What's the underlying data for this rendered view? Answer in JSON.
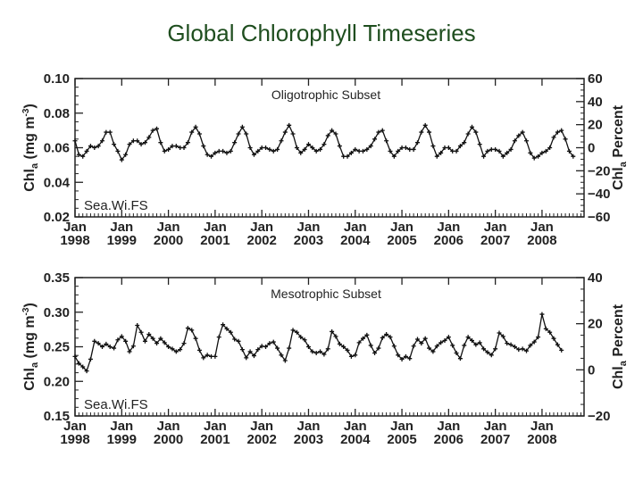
{
  "title": "Global Chlorophyll Timeseries",
  "chart_data": [
    {
      "type": "line",
      "subtitle": "Oligotrophic Subset",
      "source_label": "Sea.Wi.FS",
      "ylabel": "Chl_a (mg m^-3)",
      "ylabel_main": "Chl",
      "ylabel_sub": "a",
      "ylabel_unit": "(mg m",
      "ylabel_exp": "-3",
      "ylabel_close": ")",
      "y2label": "Chl_a Percent",
      "y2label_main": "Chl",
      "y2label_sub": "a",
      "y2label_rest": "Percent",
      "ylim": [
        0.02,
        0.1
      ],
      "yticks": [
        "0.10",
        "0.08",
        "0.06",
        "0.04",
        "0.02"
      ],
      "y2lim": [
        -60,
        60
      ],
      "y2ticks": [
        "60",
        "40",
        "20",
        "0",
        "−20",
        "−40",
        "−60"
      ],
      "xlim": [
        1998.0,
        2008.9
      ],
      "xticks": [
        {
          "month": "Jan",
          "year": "1998"
        },
        {
          "month": "Jan",
          "year": "1999"
        },
        {
          "month": "Jan",
          "year": "2000"
        },
        {
          "month": "Jan",
          "year": "2001"
        },
        {
          "month": "Jan",
          "year": "2002"
        },
        {
          "month": "Jan",
          "year": "2003"
        },
        {
          "month": "Jan",
          "year": "2004"
        },
        {
          "month": "Jan",
          "year": "2005"
        },
        {
          "month": "Jan",
          "year": "2006"
        },
        {
          "month": "Jan",
          "year": "2007"
        },
        {
          "month": "Jan",
          "year": "2008"
        }
      ],
      "series": [
        {
          "values": [
            0.064,
            0.056,
            0.055,
            0.058,
            0.061,
            0.06,
            0.061,
            0.064,
            0.069,
            0.069,
            0.062,
            0.058,
            0.053,
            0.056,
            0.062,
            0.064,
            0.064,
            0.062,
            0.063,
            0.066,
            0.07,
            0.071,
            0.063,
            0.058,
            0.059,
            0.061,
            0.061,
            0.06,
            0.06,
            0.063,
            0.069,
            0.072,
            0.068,
            0.061,
            0.056,
            0.055,
            0.057,
            0.058,
            0.058,
            0.057,
            0.058,
            0.063,
            0.068,
            0.072,
            0.068,
            0.06,
            0.056,
            0.058,
            0.06,
            0.06,
            0.059,
            0.058,
            0.059,
            0.064,
            0.069,
            0.073,
            0.068,
            0.06,
            0.057,
            0.059,
            0.062,
            0.06,
            0.058,
            0.059,
            0.062,
            0.067,
            0.07,
            0.068,
            0.061,
            0.055,
            0.055,
            0.057,
            0.059,
            0.058,
            0.058,
            0.059,
            0.061,
            0.065,
            0.069,
            0.07,
            0.064,
            0.058,
            0.055,
            0.058,
            0.06,
            0.06,
            0.059,
            0.059,
            0.063,
            0.069,
            0.073,
            0.069,
            0.061,
            0.055,
            0.057,
            0.06,
            0.06,
            0.058,
            0.058,
            0.061,
            0.063,
            0.068,
            0.072,
            0.069,
            0.062,
            0.055,
            0.058,
            0.059,
            0.059,
            0.058,
            0.055,
            0.057,
            0.059,
            0.064,
            0.067,
            0.069,
            0.064,
            0.057,
            0.054,
            0.055,
            0.057,
            0.058,
            0.06,
            0.066,
            0.069,
            0.07,
            0.065,
            0.058,
            0.055
          ]
        }
      ]
    },
    {
      "type": "line",
      "subtitle": "Mesotrophic Subset",
      "source_label": "Sea.Wi.FS",
      "ylabel": "Chl_a (mg m^-3)",
      "ylabel_main": "Chl",
      "ylabel_sub": "a",
      "ylabel_unit": "(mg m",
      "ylabel_exp": "-3",
      "ylabel_close": ")",
      "y2label": "Chl_a Percent",
      "y2label_main": "Chl",
      "y2label_sub": "a",
      "y2label_rest": "Percent",
      "ylim": [
        0.15,
        0.35
      ],
      "yticks": [
        "0.35",
        "0.30",
        "0.25",
        "0.20",
        "0.15"
      ],
      "y2lim": [
        -20,
        40
      ],
      "y2ticks": [
        "40",
        "20",
        "0",
        "−20"
      ],
      "xlim": [
        1998.0,
        2008.9
      ],
      "xticks": [
        {
          "month": "Jan",
          "year": "1998"
        },
        {
          "month": "Jan",
          "year": "1999"
        },
        {
          "month": "Jan",
          "year": "2000"
        },
        {
          "month": "Jan",
          "year": "2001"
        },
        {
          "month": "Jan",
          "year": "2002"
        },
        {
          "month": "Jan",
          "year": "2003"
        },
        {
          "month": "Jan",
          "year": "2004"
        },
        {
          "month": "Jan",
          "year": "2005"
        },
        {
          "month": "Jan",
          "year": "2006"
        },
        {
          "month": "Jan",
          "year": "2007"
        },
        {
          "month": "Jan",
          "year": "2008"
        }
      ],
      "series": [
        {
          "values": [
            0.236,
            0.226,
            0.221,
            0.215,
            0.232,
            0.258,
            0.255,
            0.25,
            0.254,
            0.25,
            0.248,
            0.26,
            0.265,
            0.258,
            0.243,
            0.251,
            0.281,
            0.271,
            0.258,
            0.268,
            0.262,
            0.255,
            0.262,
            0.256,
            0.25,
            0.247,
            0.243,
            0.246,
            0.255,
            0.277,
            0.274,
            0.262,
            0.245,
            0.234,
            0.238,
            0.236,
            0.236,
            0.264,
            0.282,
            0.276,
            0.271,
            0.261,
            0.258,
            0.246,
            0.234,
            0.243,
            0.237,
            0.246,
            0.251,
            0.25,
            0.255,
            0.257,
            0.248,
            0.238,
            0.23,
            0.248,
            0.274,
            0.271,
            0.264,
            0.26,
            0.25,
            0.243,
            0.241,
            0.243,
            0.239,
            0.247,
            0.272,
            0.265,
            0.254,
            0.25,
            0.245,
            0.236,
            0.238,
            0.256,
            0.262,
            0.267,
            0.252,
            0.241,
            0.248,
            0.263,
            0.268,
            0.264,
            0.251,
            0.238,
            0.232,
            0.236,
            0.233,
            0.251,
            0.261,
            0.255,
            0.262,
            0.248,
            0.243,
            0.251,
            0.256,
            0.259,
            0.264,
            0.252,
            0.241,
            0.233,
            0.252,
            0.264,
            0.259,
            0.253,
            0.256,
            0.247,
            0.242,
            0.238,
            0.247,
            0.27,
            0.265,
            0.255,
            0.253,
            0.25,
            0.246,
            0.247,
            0.244,
            0.252,
            0.257,
            0.264,
            0.297,
            0.276,
            0.271,
            0.262,
            0.253,
            0.245
          ]
        }
      ]
    }
  ]
}
